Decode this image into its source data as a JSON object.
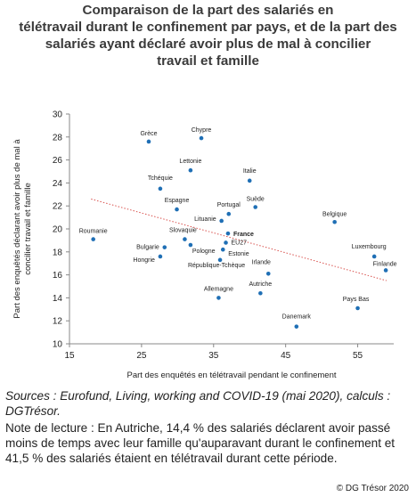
{
  "title_lines": [
    "Comparaison de la part des salariés en",
    "télétravail durant le confinement par pays, et de la part des",
    "salariés ayant déclaré avoir plus de mal à concilier",
    "travail et famille"
  ],
  "sources": "Sources : Eurofund, Living, working and COVID-19 (mai 2020), calculs : DGTrésor.",
  "note": "Note de lecture : En Autriche, 14,4 % des salariés déclarent avoir passé moins de temps avec leur famille qu'auparavant durant le confinement et 41,5 % des salariés étaient en télétravail durant cette période.",
  "credit": "© DG Trésor 2020",
  "colors": {
    "points": "#1f6fb5",
    "trend": "#d9534f",
    "axis": "#888888"
  },
  "chart_data": {
    "type": "scatter",
    "xlabel": "Part des enquêtés en télétravail pendant le confinement",
    "ylabel": "Part des enquêtés déclarant avoir plus de mal à concilier travail et famille",
    "xlim": [
      15,
      60
    ],
    "ylim": [
      10,
      30
    ],
    "xticks": [
      15,
      25,
      35,
      45,
      55
    ],
    "yticks": [
      10,
      12,
      14,
      16,
      18,
      20,
      22,
      24,
      26,
      28,
      30
    ],
    "points": [
      {
        "label": "Grèce",
        "x": 26.0,
        "y": 27.6
      },
      {
        "label": "Chypre",
        "x": 33.3,
        "y": 27.9
      },
      {
        "label": "Lettonie",
        "x": 31.8,
        "y": 25.1
      },
      {
        "label": "Italie",
        "x": 40.0,
        "y": 24.2
      },
      {
        "label": "Tchéquie",
        "x": 27.6,
        "y": 23.5
      },
      {
        "label": "Suède",
        "x": 40.8,
        "y": 21.9
      },
      {
        "label": "Espagne",
        "x": 29.9,
        "y": 21.7
      },
      {
        "label": "Portugal",
        "x": 37.1,
        "y": 21.3
      },
      {
        "label": "Lituanie",
        "x": 36.1,
        "y": 20.7
      },
      {
        "label": "Belgique",
        "x": 51.8,
        "y": 20.6
      },
      {
        "label": "Roumanie",
        "x": 18.3,
        "y": 19.1
      },
      {
        "label": "France",
        "x": 37.0,
        "y": 19.6
      },
      {
        "label": "Slovaquie",
        "x": 31.0,
        "y": 19.1
      },
      {
        "label": "EU27",
        "x": 36.7,
        "y": 18.8
      },
      {
        "label": "Bulgarie",
        "x": 28.2,
        "y": 18.4
      },
      {
        "label": "Pologne",
        "x": 31.8,
        "y": 18.6
      },
      {
        "label": "Estonie",
        "x": 36.3,
        "y": 18.2
      },
      {
        "label": "Hongrie",
        "x": 27.6,
        "y": 17.6
      },
      {
        "label": "République-Tchèque",
        "x": 35.9,
        "y": 17.3
      },
      {
        "label": "Luxembourg",
        "x": 57.3,
        "y": 17.6
      },
      {
        "label": "Finlande",
        "x": 58.9,
        "y": 16.4
      },
      {
        "label": "Irlande",
        "x": 42.6,
        "y": 16.1
      },
      {
        "label": "Allemagne",
        "x": 35.7,
        "y": 14.0
      },
      {
        "label": "Autriche",
        "x": 41.5,
        "y": 14.4
      },
      {
        "label": "Pays Bas",
        "x": 55.0,
        "y": 13.1
      },
      {
        "label": "Danemark",
        "x": 46.5,
        "y": 11.5
      }
    ],
    "trendline": {
      "x": [
        18,
        59
      ],
      "y": [
        22.6,
        15.5
      ]
    }
  }
}
